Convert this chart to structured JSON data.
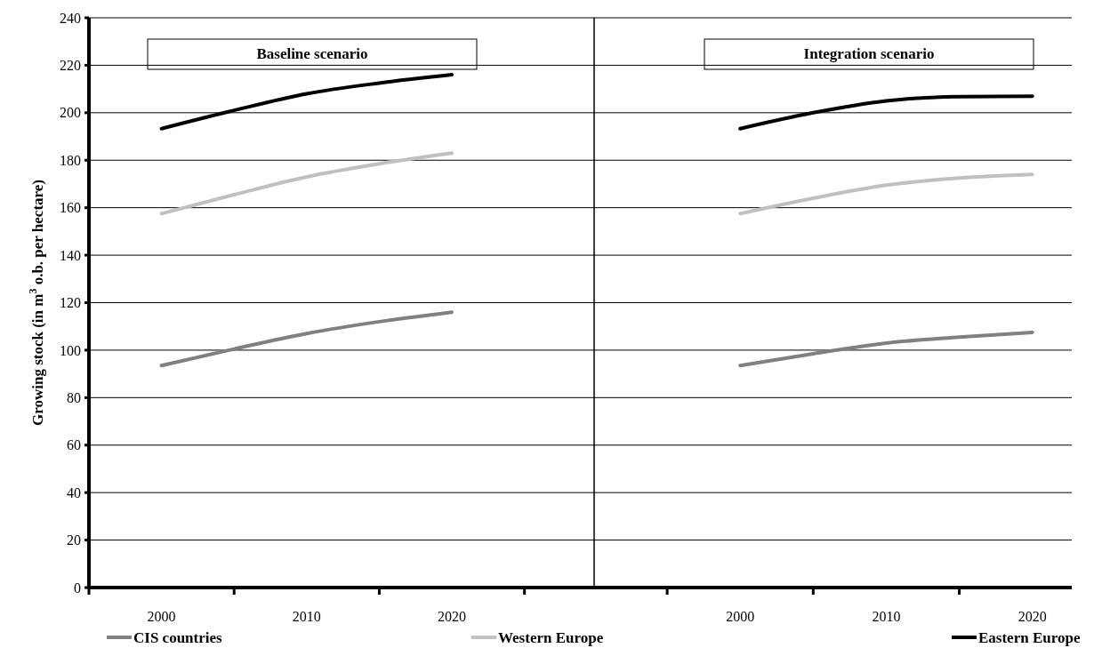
{
  "chart_data": [
    {
      "type": "line",
      "title": "Baseline scenario",
      "ylabel": "Growing stock (in m$^{3}$ o.b. per hectare)",
      "x": [
        2000,
        2005,
        2010,
        2015,
        2020
      ],
      "xlim": [
        1995,
        2029.8
      ],
      "xticks": [
        {
          "value": 1995,
          "label": null
        },
        2000,
        {
          "value": 2005,
          "label": null
        },
        2010,
        {
          "value": 2015,
          "label": null
        },
        2020,
        {
          "value": 2025,
          "label": null
        }
      ],
      "ylim": [
        0,
        240
      ],
      "yticks": [
        0,
        20,
        40,
        60,
        80,
        100,
        120,
        140,
        160,
        180,
        200,
        220,
        240
      ],
      "grid": "y",
      "legend": "bottom",
      "series": [
        {
          "name": "CIS countries",
          "color": "#808080",
          "values": [
            93.5,
            100.5,
            107,
            112,
            116
          ]
        },
        {
          "name": "Western Europe",
          "color": "#c0c0c0",
          "values": [
            157.5,
            165.5,
            173,
            178.5,
            183
          ]
        },
        {
          "name": "Eastern Europe",
          "color": "#000000",
          "values": [
            193.3,
            201,
            208,
            212.5,
            216
          ]
        }
      ]
    },
    {
      "type": "line",
      "title": "Integration scenario",
      "x": [
        2000,
        2005,
        2010,
        2015,
        2020
      ],
      "xlim": [
        1990,
        2022.7
      ],
      "xticks": [
        {
          "value": 1995,
          "label": null
        },
        2000,
        {
          "value": 2005,
          "label": null
        },
        2010,
        {
          "value": 2015,
          "label": null
        },
        2020
      ],
      "ylim": [
        0,
        240
      ],
      "yticks": [
        0,
        20,
        40,
        60,
        80,
        100,
        120,
        140,
        160,
        180,
        200,
        220,
        240
      ],
      "grid": "y",
      "tick_labels": "x",
      "series": [
        {
          "color": "#808080",
          "values": [
            93.5,
            98.5,
            103,
            105.5,
            107.5
          ]
        },
        {
          "color": "#c0c0c0",
          "values": [
            157.5,
            164,
            169.5,
            172.5,
            174
          ]
        },
        {
          "color": "#000000",
          "values": [
            193.3,
            200,
            205,
            206.8,
            207
          ]
        }
      ]
    }
  ]
}
